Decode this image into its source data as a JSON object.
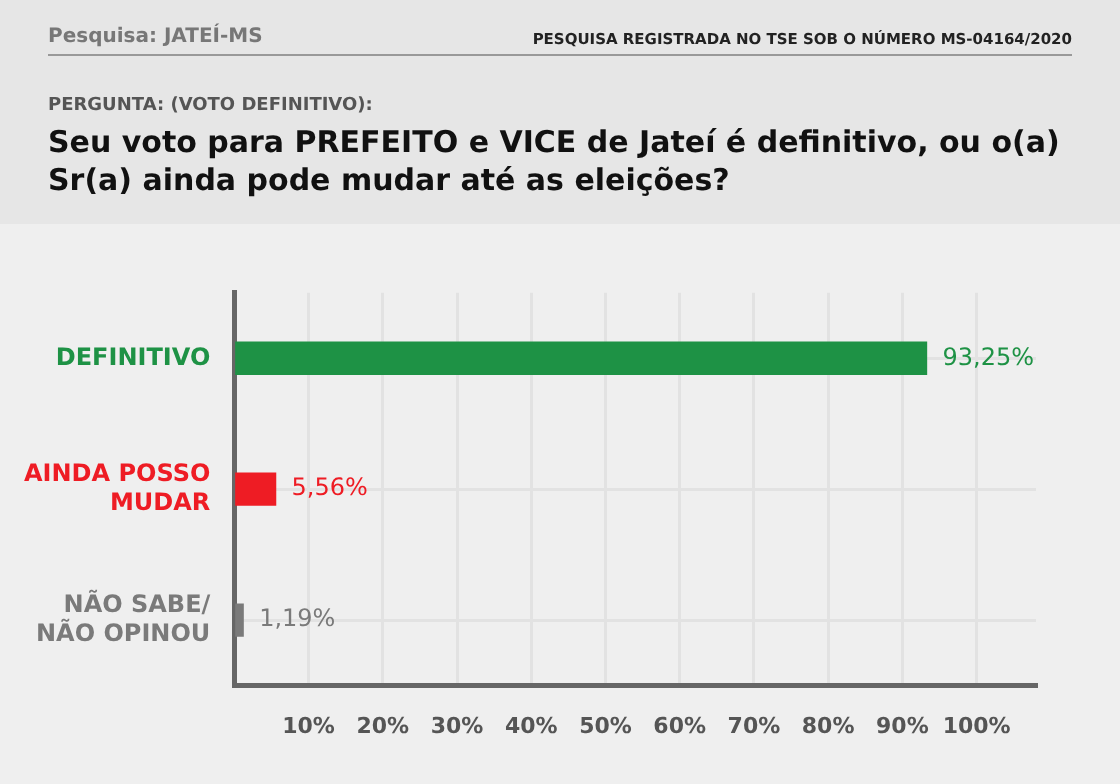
{
  "chart_data": {
    "type": "bar",
    "orientation": "horizontal",
    "title": "Seu voto para PREFEITO e VICE de Jateí é definitivo, ou o(a) Sr(a) ainda pode mudar até as eleições?",
    "subtitle": "PERGUNTA: (VOTO DEFINITIVO):",
    "annotations": [
      "Pesquisa: JATEÍ-MS",
      "PESQUISA REGISTRADA NO TSE SOB O NÚMERO MS-04164/2020"
    ],
    "categories": [
      "DEFINITIVO",
      "AINDA POSSO MUDAR",
      "NÃO SABE/ NÃO OPINOU"
    ],
    "values": [
      93.25,
      5.56,
      1.19
    ],
    "colors": [
      "#1e9245",
      "#ee1c24",
      "#7a7a7a"
    ],
    "value_labels": [
      "93,25%",
      "5,56%",
      "1,19%"
    ],
    "xlim": [
      0,
      108
    ],
    "xticks": [
      {
        "value": 0,
        "label": null
      },
      {
        "value": 10,
        "label": "10%"
      },
      {
        "value": 20,
        "label": "20%"
      },
      {
        "value": 30,
        "label": "30%"
      },
      {
        "value": 40,
        "label": "40%"
      },
      {
        "value": 50,
        "label": "50%"
      },
      {
        "value": 60,
        "label": "60%"
      },
      {
        "value": 70,
        "label": "70%"
      },
      {
        "value": 80,
        "label": "80%"
      },
      {
        "value": 90,
        "label": "90%"
      },
      {
        "value": 100,
        "label": "100%"
      }
    ],
    "grid": true
  }
}
